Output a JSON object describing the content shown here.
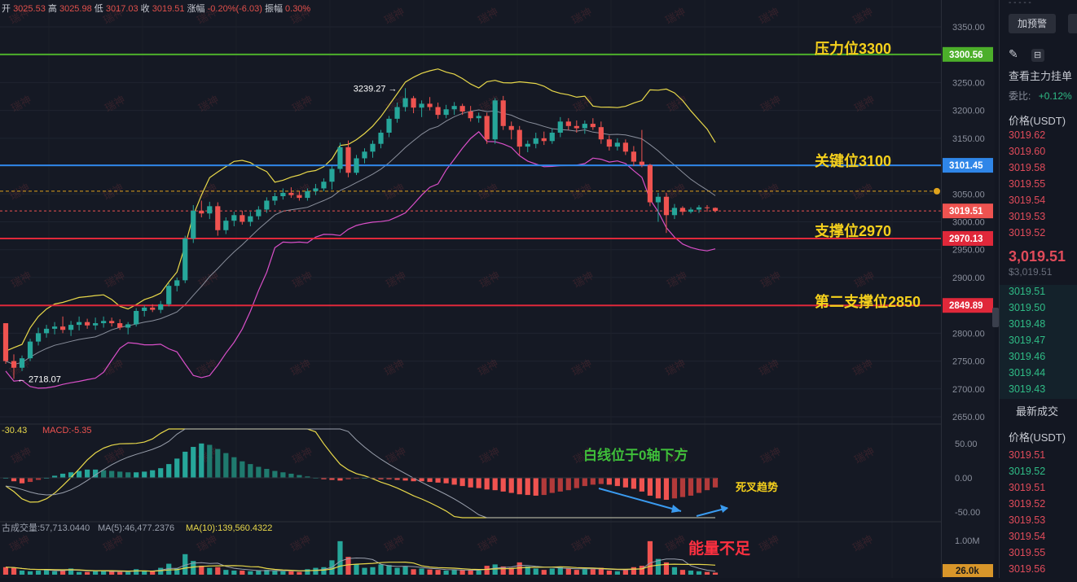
{
  "ohlc_header": {
    "open_label": "开",
    "open": "3025.53",
    "high_label": "高",
    "high": "3025.98",
    "low_label": "低",
    "low": "3017.03",
    "close_label": "收",
    "close": "3019.51",
    "change_label": "涨幅",
    "change": "-0.20%(-6.03)",
    "amplitude_label": "振幅",
    "amplitude": "0.30%"
  },
  "watermark": "瑞神",
  "level_lines": [
    {
      "label": "压力位3300",
      "value": 3300.56,
      "tag": "3300.56",
      "color": "#4caf2a"
    },
    {
      "label": "关键位3100",
      "value": 3101.45,
      "tag": "3101.45",
      "color": "#2f86e8"
    },
    {
      "label": "支撑位2970",
      "value": 2970.13,
      "tag": "2970.13",
      "color": "#e0283a"
    },
    {
      "label": "第二支撑位2850",
      "value": 2849.89,
      "tag": "2849.89",
      "color": "#e0283a"
    }
  ],
  "current_price_tag": "3019.51",
  "price_annotations": {
    "high": "3239.27",
    "low": "2718.07"
  },
  "macd_header": {
    "left": "-30.43",
    "macd": "MACD:-5.35"
  },
  "volume_header": {
    "vol": "古成交量:57,713.0440",
    "ma5": "MA(5):46,477.2376",
    "ma10": "MA(10):139,560.4322"
  },
  "volume_tag": "26.0k",
  "annotations": {
    "white_line": "白线位于0轴下方",
    "death_cross": "死叉趋势",
    "low_volume": "能量不足"
  },
  "chart_data": {
    "type": "candlestick",
    "price_axis": {
      "ylim": [
        2630,
        3370
      ],
      "ticks": [
        "3350.00",
        "3300.00",
        "3250.00",
        "3200.00",
        "3150.00",
        "3100.00",
        "3050.00",
        "3000.00",
        "2950.00",
        "2900.00",
        "2850.00",
        "2800.00",
        "2750.00",
        "2700.00",
        "2650.00"
      ]
    },
    "macd_axis": {
      "ylim": [
        -62,
        62
      ],
      "ticks": [
        "50.00",
        "0.00",
        "-50.00"
      ]
    },
    "volume_axis": {
      "ticks": [
        "1.00M"
      ]
    },
    "candles": [
      [
        2818,
        2818,
        2745,
        2750
      ],
      [
        2750,
        2762,
        2718,
        2738
      ],
      [
        2738,
        2760,
        2732,
        2755
      ],
      [
        2755,
        2790,
        2750,
        2785
      ],
      [
        2785,
        2810,
        2778,
        2800
      ],
      [
        2800,
        2815,
        2792,
        2808
      ],
      [
        2808,
        2820,
        2798,
        2812
      ],
      [
        2812,
        2830,
        2800,
        2806
      ],
      [
        2806,
        2822,
        2795,
        2815
      ],
      [
        2815,
        2830,
        2805,
        2820
      ],
      [
        2820,
        2826,
        2808,
        2814
      ],
      [
        2814,
        2828,
        2806,
        2818
      ],
      [
        2818,
        2830,
        2810,
        2822
      ],
      [
        2822,
        2828,
        2812,
        2818
      ],
      [
        2818,
        2825,
        2806,
        2810
      ],
      [
        2810,
        2820,
        2798,
        2816
      ],
      [
        2816,
        2845,
        2812,
        2840
      ],
      [
        2840,
        2850,
        2830,
        2846
      ],
      [
        2846,
        2852,
        2838,
        2842
      ],
      [
        2842,
        2858,
        2836,
        2852
      ],
      [
        2852,
        2890,
        2848,
        2885
      ],
      [
        2885,
        2900,
        2875,
        2895
      ],
      [
        2895,
        2975,
        2890,
        2970
      ],
      [
        2970,
        3030,
        2962,
        3020
      ],
      [
        3020,
        3038,
        3008,
        3015
      ],
      [
        3015,
        3036,
        3005,
        3028
      ],
      [
        3028,
        3035,
        2975,
        2985
      ],
      [
        2985,
        3008,
        2978,
        3002
      ],
      [
        3002,
        3018,
        2992,
        3012
      ],
      [
        3012,
        3020,
        2995,
        3000
      ],
      [
        3000,
        3018,
        2992,
        3010
      ],
      [
        3010,
        3028,
        3004,
        3022
      ],
      [
        3022,
        3044,
        3016,
        3038
      ],
      [
        3038,
        3052,
        3030,
        3046
      ],
      [
        3046,
        3060,
        3040,
        3052
      ],
      [
        3052,
        3062,
        3043,
        3048
      ],
      [
        3048,
        3055,
        3038,
        3043
      ],
      [
        3043,
        3060,
        3038,
        3055
      ],
      [
        3055,
        3068,
        3048,
        3060
      ],
      [
        3060,
        3078,
        3055,
        3072
      ],
      [
        3072,
        3100,
        3058,
        3095
      ],
      [
        3095,
        3142,
        3088,
        3134
      ],
      [
        3134,
        3146,
        3080,
        3088
      ],
      [
        3088,
        3120,
        3084,
        3114
      ],
      [
        3114,
        3132,
        3105,
        3126
      ],
      [
        3126,
        3146,
        3115,
        3140
      ],
      [
        3140,
        3165,
        3132,
        3160
      ],
      [
        3160,
        3190,
        3152,
        3185
      ],
      [
        3185,
        3214,
        3178,
        3206
      ],
      [
        3206,
        3240,
        3198,
        3222
      ],
      [
        3222,
        3226,
        3195,
        3205
      ],
      [
        3205,
        3218,
        3188,
        3212
      ],
      [
        3212,
        3224,
        3200,
        3206
      ],
      [
        3206,
        3214,
        3185,
        3192
      ],
      [
        3192,
        3210,
        3186,
        3202
      ],
      [
        3202,
        3215,
        3192,
        3208
      ],
      [
        3208,
        3212,
        3192,
        3198
      ],
      [
        3198,
        3208,
        3180,
        3186
      ],
      [
        3186,
        3196,
        3178,
        3190
      ],
      [
        3190,
        3196,
        3140,
        3148
      ],
      [
        3148,
        3222,
        3140,
        3218
      ],
      [
        3218,
        3226,
        3165,
        3172
      ],
      [
        3172,
        3180,
        3148,
        3165
      ],
      [
        3165,
        3172,
        3120,
        3135
      ],
      [
        3135,
        3146,
        3125,
        3140
      ],
      [
        3140,
        3160,
        3132,
        3150
      ],
      [
        3150,
        3162,
        3138,
        3145
      ],
      [
        3145,
        3168,
        3140,
        3160
      ],
      [
        3160,
        3188,
        3152,
        3180
      ],
      [
        3180,
        3186,
        3165,
        3172
      ],
      [
        3172,
        3182,
        3160,
        3168
      ],
      [
        3168,
        3182,
        3158,
        3176
      ],
      [
        3176,
        3186,
        3165,
        3170
      ],
      [
        3170,
        3180,
        3140,
        3148
      ],
      [
        3148,
        3155,
        3128,
        3135
      ],
      [
        3135,
        3150,
        3128,
        3142
      ],
      [
        3142,
        3148,
        3120,
        3126
      ],
      [
        3126,
        3136,
        3100,
        3108
      ],
      [
        3108,
        3165,
        3098,
        3102
      ],
      [
        3102,
        3104,
        3028,
        3035
      ],
      [
        3035,
        3052,
        3000,
        3045
      ],
      [
        3045,
        3052,
        2980,
        3012
      ],
      [
        3012,
        3032,
        3005,
        3025
      ],
      [
        3025,
        3028,
        3012,
        3018
      ],
      [
        3018,
        3026,
        3015,
        3022
      ],
      [
        3022,
        3030,
        3016,
        3026
      ],
      [
        3026,
        3030,
        3018,
        3025
      ],
      [
        3025,
        3026,
        3017,
        3019.51
      ]
    ],
    "macd_hist": [
      0,
      -5,
      -8,
      -6,
      -3,
      0,
      3,
      6,
      8,
      10,
      12,
      12,
      11,
      10,
      9,
      8,
      8,
      9,
      11,
      14,
      20,
      28,
      38,
      45,
      50,
      48,
      42,
      36,
      30,
      24,
      20,
      16,
      13,
      10,
      8,
      6,
      4,
      2,
      0,
      -2,
      -3,
      -4,
      -2,
      -1,
      0,
      -1,
      -2,
      -2,
      -3,
      -4,
      -5,
      -5,
      -6,
      -7,
      -8,
      -10,
      -12,
      -14,
      -15,
      -17,
      -18,
      -20,
      -22,
      -24,
      -25,
      -26,
      -25,
      -22,
      -20,
      -18,
      -15,
      -12,
      -10,
      -9,
      -10,
      -12,
      -14,
      -16,
      -20,
      -26,
      -30,
      -32,
      -30,
      -28,
      -26,
      -22,
      -18,
      -14
    ],
    "volume": [
      0.22,
      0.2,
      0.12,
      0.1,
      0.12,
      0.16,
      0.1,
      0.12,
      0.18,
      0.08,
      0.08,
      0.1,
      0.12,
      0.1,
      0.08,
      0.08,
      0.16,
      0.12,
      0.1,
      0.2,
      0.32,
      0.18,
      0.6,
      0.4,
      0.26,
      0.2,
      0.22,
      0.14,
      0.12,
      0.12,
      0.1,
      0.12,
      0.14,
      0.12,
      0.1,
      0.1,
      0.08,
      0.16,
      0.2,
      0.22,
      0.42,
      0.98,
      0.52,
      0.3,
      0.2,
      0.22,
      0.3,
      0.28,
      0.2,
      0.24,
      0.16,
      0.18,
      0.15,
      0.14,
      0.12,
      0.14,
      0.13,
      0.14,
      0.12,
      0.26,
      0.3,
      0.24,
      0.2,
      0.36,
      0.24,
      0.18,
      0.14,
      0.18,
      0.22,
      0.18,
      0.14,
      0.16,
      0.16,
      0.2,
      0.12,
      0.1,
      0.14,
      0.22,
      0.26,
      0.98,
      0.46,
      0.36,
      0.22,
      0.14,
      0.12,
      0.1,
      0.08,
      0.06
    ]
  },
  "right_panel": {
    "top_tab": "- - - - -",
    "alert_button": "加预警",
    "main_orders": "查看主力挂单",
    "ratio_label": "委比:",
    "ratio_value": "+0.12%",
    "price_header": "价格(USDT)",
    "asks": [
      "3019.62",
      "3019.60",
      "3019.58",
      "3019.55",
      "3019.54",
      "3019.53",
      "3019.52"
    ],
    "last_price": "3,019.51",
    "last_price_usd": "$3,019.51",
    "bids": [
      "3019.51",
      "3019.50",
      "3019.48",
      "3019.47",
      "3019.46",
      "3019.44",
      "3019.43"
    ],
    "trades_title": "最新成交",
    "trades_header": "价格(USDT)",
    "trades": [
      {
        "price": "3019.51",
        "side": "red"
      },
      {
        "price": "3019.52",
        "side": "green"
      },
      {
        "price": "3019.51",
        "side": "red"
      },
      {
        "price": "3019.52",
        "side": "red"
      },
      {
        "price": "3019.53",
        "side": "red"
      },
      {
        "price": "3019.54",
        "side": "red"
      },
      {
        "price": "3019.55",
        "side": "red"
      },
      {
        "price": "3019.56",
        "side": "red"
      }
    ]
  },
  "colors": {
    "up": "#26a69a",
    "down": "#ef5350",
    "bg": "#151924",
    "label_yellow": "#f5d01c"
  }
}
